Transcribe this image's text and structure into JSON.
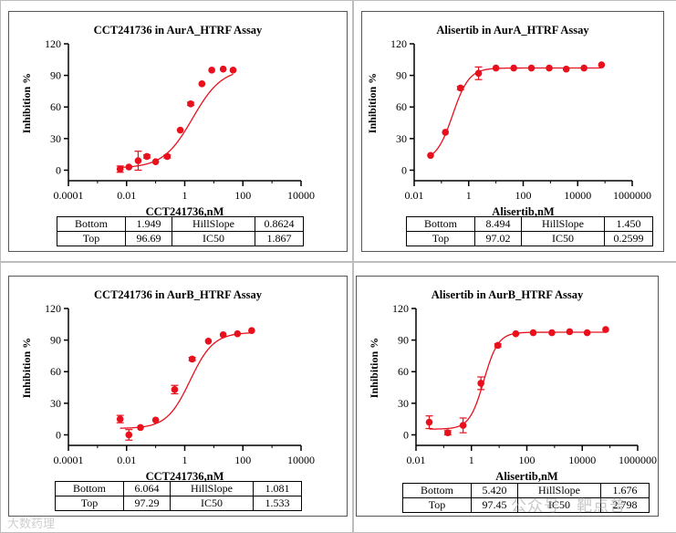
{
  "colors": {
    "curve": "#e8101c",
    "axis": "#000000",
    "frame": "#555555"
  },
  "watermark": {
    "left": "大数药理",
    "right": "公众号 · 靶点普"
  },
  "chart_data": [
    {
      "type": "scatter",
      "title": "CCT241736 in AurA_HTRF Assay",
      "xlabel": "CCT241736,nM",
      "ylabel": "Inhibition %",
      "xscale": "log",
      "xlim": [
        0.0001,
        10000
      ],
      "ylim": [
        -10,
        120
      ],
      "xticks": [
        0.0001,
        0.01,
        1,
        100,
        10000
      ],
      "xtick_labels": [
        "0.0001",
        "0.01",
        "1",
        "100",
        "10000"
      ],
      "yticks": [
        0,
        30,
        60,
        90,
        120
      ],
      "fit": {
        "bottom": 1.949,
        "top": 96.69,
        "ic50": 1.867,
        "hill": 0.8624
      },
      "points": [
        {
          "x": 0.006,
          "y": 1,
          "err": 3
        },
        {
          "x": 0.012,
          "y": 3,
          "err": 1
        },
        {
          "x": 0.025,
          "y": 9,
          "err": 9
        },
        {
          "x": 0.05,
          "y": 13,
          "err": 1.5
        },
        {
          "x": 0.1,
          "y": 8,
          "err": 1
        },
        {
          "x": 0.25,
          "y": 13,
          "err": 1.5
        },
        {
          "x": 0.7,
          "y": 38,
          "err": 1
        },
        {
          "x": 1.6,
          "y": 63,
          "err": 1.5
        },
        {
          "x": 3.9,
          "y": 82,
          "err": 1
        },
        {
          "x": 8.5,
          "y": 95,
          "err": 1
        },
        {
          "x": 21,
          "y": 96,
          "err": 1
        },
        {
          "x": 46,
          "y": 95,
          "err": 1
        }
      ],
      "params": [
        [
          "Bottom",
          "1.949",
          "HillSlope",
          "0.8624"
        ],
        [
          "Top",
          "96.69",
          "IC50",
          "1.867"
        ]
      ]
    },
    {
      "type": "scatter",
      "title": "Alisertib in AurA_HTRF Assay",
      "xlabel": "Alisertib,nM",
      "ylabel": "Inhibition %",
      "xscale": "log",
      "xlim": [
        0.01,
        1000000
      ],
      "ylim": [
        -10,
        120
      ],
      "xticks": [
        0.01,
        1,
        100,
        10000,
        1000000
      ],
      "xtick_labels": [
        "0.01",
        "1",
        "100",
        "10000",
        "1000000"
      ],
      "yticks": [
        0,
        30,
        60,
        90,
        120
      ],
      "fit": {
        "bottom": 8.494,
        "top": 97.02,
        "ic50": 0.2599,
        "hill": 1.45
      },
      "points": [
        {
          "x": 0.04,
          "y": 14,
          "err": 1
        },
        {
          "x": 0.14,
          "y": 36,
          "err": 1
        },
        {
          "x": 0.5,
          "y": 78,
          "err": 1.5
        },
        {
          "x": 2.3,
          "y": 92,
          "err": 6
        },
        {
          "x": 10,
          "y": 97,
          "err": 1
        },
        {
          "x": 45,
          "y": 97,
          "err": 1
        },
        {
          "x": 200,
          "y": 97,
          "err": 1
        },
        {
          "x": 900,
          "y": 97,
          "err": 1
        },
        {
          "x": 3800,
          "y": 96,
          "err": 1
        },
        {
          "x": 17000,
          "y": 97,
          "err": 1
        },
        {
          "x": 75000,
          "y": 100,
          "err": 1
        }
      ],
      "params": [
        [
          "Bottom",
          "8.494",
          "HillSlope",
          "1.450"
        ],
        [
          "Top",
          "97.02",
          "IC50",
          "0.2599"
        ]
      ]
    },
    {
      "type": "scatter",
      "title": "CCT241736 in AurB_HTRF Assay",
      "xlabel": "CCT241736,nM",
      "ylabel": "Inhibition %",
      "xscale": "log",
      "xlim": [
        0.0001,
        10000
      ],
      "ylim": [
        -10,
        120
      ],
      "xticks": [
        0.0001,
        0.01,
        1,
        100,
        10000
      ],
      "xtick_labels": [
        "0.0001",
        "0.01",
        "1",
        "100",
        "10000"
      ],
      "yticks": [
        0,
        30,
        60,
        90,
        120
      ],
      "fit": {
        "bottom": 6.064,
        "top": 97.29,
        "ic50": 1.533,
        "hill": 1.081
      },
      "points": [
        {
          "x": 0.006,
          "y": 15,
          "err": 3.5
        },
        {
          "x": 0.012,
          "y": 0,
          "err": 5
        },
        {
          "x": 0.03,
          "y": 7,
          "err": 1
        },
        {
          "x": 0.1,
          "y": 14,
          "err": 1
        },
        {
          "x": 0.45,
          "y": 43,
          "err": 4
        },
        {
          "x": 1.8,
          "y": 72,
          "err": 1.5
        },
        {
          "x": 6.5,
          "y": 89,
          "err": 1
        },
        {
          "x": 21,
          "y": 95,
          "err": 1
        },
        {
          "x": 65,
          "y": 96,
          "err": 1
        },
        {
          "x": 200,
          "y": 99,
          "err": 1
        }
      ],
      "params": [
        [
          "Bottom",
          "6.064",
          "HillSlope",
          "1.081"
        ],
        [
          "Top",
          "97.29",
          "IC50",
          "1.533"
        ]
      ]
    },
    {
      "type": "scatter",
      "title": "Alisertib in AurB_HTRF Assay",
      "xlabel": "Alisertib,nM",
      "ylabel": "Inhibition %",
      "xscale": "log",
      "xlim": [
        0.01,
        1000000
      ],
      "ylim": [
        -10,
        120
      ],
      "xticks": [
        0.01,
        1,
        100,
        10000,
        1000000
      ],
      "xtick_labels": [
        "0.01",
        "1",
        "100",
        "10000",
        "1000000"
      ],
      "yticks": [
        0,
        30,
        60,
        90,
        120
      ],
      "fit": {
        "bottom": 5.42,
        "top": 97.45,
        "ic50": 2.798,
        "hill": 1.676
      },
      "points": [
        {
          "x": 0.03,
          "y": 12,
          "err": 6
        },
        {
          "x": 0.14,
          "y": 2,
          "err": 2
        },
        {
          "x": 0.5,
          "y": 9,
          "err": 7
        },
        {
          "x": 2.2,
          "y": 49,
          "err": 6
        },
        {
          "x": 9,
          "y": 85,
          "err": 1.5
        },
        {
          "x": 40,
          "y": 96,
          "err": 1
        },
        {
          "x": 170,
          "y": 97,
          "err": 1
        },
        {
          "x": 800,
          "y": 97,
          "err": 1
        },
        {
          "x": 3500,
          "y": 98,
          "err": 1
        },
        {
          "x": 15000,
          "y": 97,
          "err": 1
        },
        {
          "x": 70000,
          "y": 100,
          "err": 1
        }
      ],
      "params": [
        [
          "Bottom",
          "5.420",
          "HillSlope",
          "1.676"
        ],
        [
          "Top",
          "97.45",
          "IC50",
          "2.798"
        ]
      ]
    }
  ]
}
